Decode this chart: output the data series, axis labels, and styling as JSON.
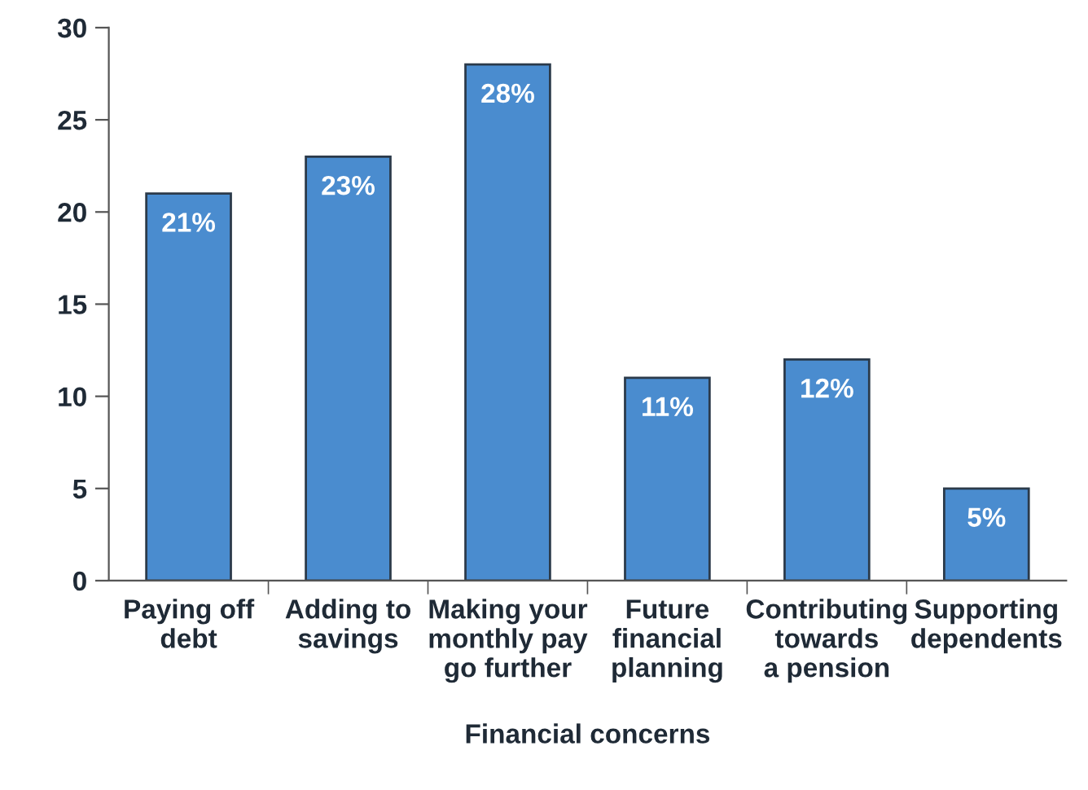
{
  "chart_data": {
    "type": "bar",
    "xlabel": "Financial concerns",
    "categories": [
      "Paying off\ndebt",
      "Adding to\nsavings",
      "Making your\nmonthly pay\ngo further",
      "Future\nfinancial\nplanning",
      "Contributing\ntowards\na pension",
      "Supporting\ndependents"
    ],
    "values": [
      21,
      23,
      28,
      11,
      12,
      5
    ],
    "value_labels": [
      "21%",
      "23%",
      "28%",
      "11%",
      "12%",
      "5%"
    ],
    "color": "#4a8ccf",
    "ylim": [
      0,
      30
    ],
    "yticks": [
      0,
      5,
      10,
      15,
      20,
      25,
      30
    ],
    "grid": false,
    "legend": false
  }
}
